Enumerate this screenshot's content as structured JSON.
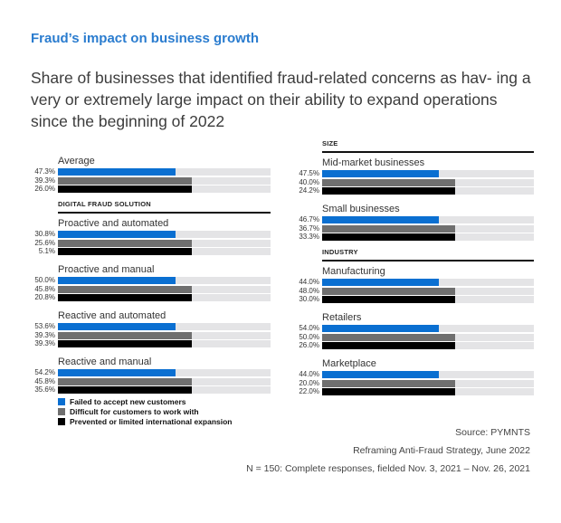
{
  "title": "Fraud’s impact on business growth",
  "subtitle": "Share of businesses that identified fraud-related concerns as hav- ing a very or extremely large impact on their ability to expand operations since the beginning of 2022",
  "colors": {
    "failed": "#0a6fd1",
    "difficult": "#6f6f6f",
    "prevented": "#000000",
    "track": "#e4e4e6",
    "title": "#2a7ccf"
  },
  "legend": [
    {
      "label": "Failed to accept new customers",
      "color": "#0a6fd1"
    },
    {
      "label": "Difficult for customers to work with",
      "color": "#6f6f6f"
    },
    {
      "label": "Prevented or limited international expansion",
      "color": "#000000"
    }
  ],
  "footer": {
    "source": "Source: PYMNTS",
    "report": "Reframing Anti-Fraud Strategy, June 2022",
    "sample": "N = 150: Complete responses, fielded Nov. 3, 2021 – Nov. 26, 2021"
  },
  "chart_data": {
    "type": "bar",
    "orientation": "horizontal",
    "title": "Fraud’s impact on business growth",
    "unit": "%",
    "series_names": [
      "Failed to accept new customers",
      "Difficult for customers to work with",
      "Prevented or limited international expansion"
    ],
    "sections": [
      {
        "heading": "",
        "column": "left",
        "groups": [
          {
            "label": "Average",
            "values": [
              47.3,
              39.3,
              26.0
            ],
            "labels": [
              "47.3%",
              "39.3%",
              "26.0%"
            ]
          }
        ]
      },
      {
        "heading": "DIGITAL FRAUD SOLUTION",
        "column": "left",
        "groups": [
          {
            "label": "Proactive and automated",
            "values": [
              30.8,
              25.6,
              5.1
            ],
            "labels": [
              "30.8%",
              "25.6%",
              "5.1%"
            ]
          },
          {
            "label": "Proactive and manual",
            "values": [
              50.0,
              45.8,
              20.8
            ],
            "labels": [
              "50.0%",
              "45.8%",
              "20.8%"
            ]
          },
          {
            "label": "Reactive and automated",
            "values": [
              53.6,
              39.3,
              39.3
            ],
            "labels": [
              "53.6%",
              "39.3%",
              "39.3%"
            ]
          },
          {
            "label": "Reactive and manual",
            "values": [
              54.2,
              45.8,
              35.6
            ],
            "labels": [
              "54.2%",
              "45.8%",
              "35.6%"
            ]
          }
        ]
      },
      {
        "heading": "SIZE",
        "column": "right",
        "groups": [
          {
            "label": "Mid-market businesses",
            "values": [
              47.5,
              40.0,
              24.2
            ],
            "labels": [
              "47.5%",
              "40.0%",
              "24.2%"
            ]
          },
          {
            "label": "Small businesses",
            "values": [
              46.7,
              36.7,
              33.3
            ],
            "labels": [
              "46.7%",
              "36.7%",
              "33.3%"
            ]
          }
        ]
      },
      {
        "heading": "INDUSTRY",
        "column": "right",
        "groups": [
          {
            "label": "Manufacturing",
            "values": [
              44.0,
              48.0,
              30.0
            ],
            "labels": [
              "44.0%",
              "48.0%",
              "30.0%"
            ]
          },
          {
            "label": "Retailers",
            "values": [
              54.0,
              50.0,
              26.0
            ],
            "labels": [
              "54.0%",
              "50.0%",
              "26.0%"
            ]
          },
          {
            "label": "Marketplace",
            "values": [
              44.0,
              20.0,
              22.0
            ],
            "labels": [
              "44.0%",
              "20.0%",
              "22.0%"
            ]
          }
        ]
      }
    ]
  }
}
